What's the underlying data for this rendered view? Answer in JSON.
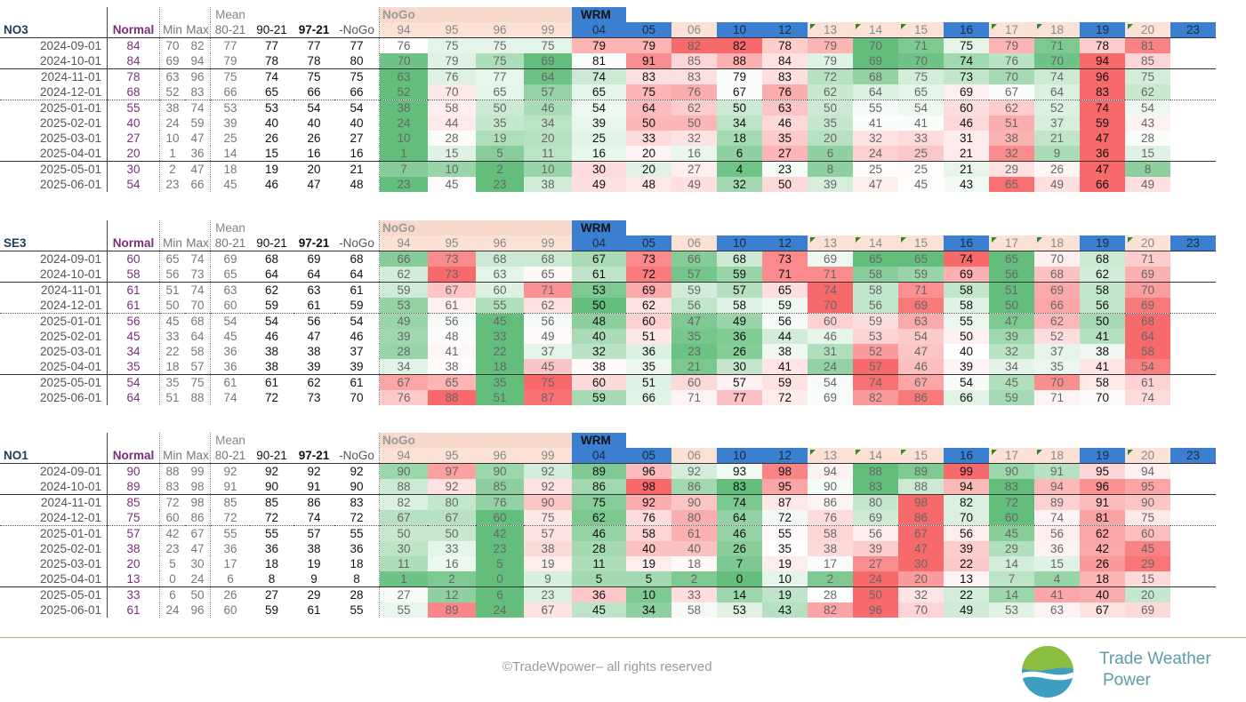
{
  "header_labels": {
    "normal": "Normal",
    "min": "Min",
    "max": "Max",
    "mean": "Mean",
    "m80": "80-21",
    "m90": "90-21",
    "m97": "97-21",
    "nogo_col": "-NoGo",
    "nogo_group": "NoGo",
    "wrm_group": "WRM"
  },
  "years": [
    "94",
    "95",
    "96",
    "99",
    "04",
    "05",
    "06",
    "10",
    "12",
    "13",
    "14",
    "15",
    "16",
    "17",
    "18",
    "19",
    "20",
    "23"
  ],
  "year_style": [
    "n",
    "n",
    "n",
    "n",
    "b",
    "b",
    "n",
    "b",
    "b",
    "f",
    "f",
    "f",
    "b",
    "f",
    "f",
    "b",
    "f",
    "b"
  ],
  "colors": {
    "accent_blue": "#3b7fd1",
    "nogo_bg": "#f7d9cc",
    "normal_purple": "#7a2e7a",
    "green_line": "#9ec25a"
  },
  "tables": [
    {
      "title": "NO3",
      "rows": [
        {
          "date": "2024-09-01",
          "normal": "84",
          "min": "70",
          "max": "82",
          "m80": "77",
          "m90": "77",
          "m97": "77",
          "mng": "77",
          "v": [
            "76",
            "75",
            "75",
            "75",
            "79",
            "79",
            "82",
            "82",
            "78",
            "79",
            "70",
            "71",
            "75",
            "79",
            "71",
            "78",
            "81",
            ""
          ]
        },
        {
          "date": "2024-10-01",
          "normal": "84",
          "min": "69",
          "max": "94",
          "m80": "79",
          "m90": "78",
          "m97": "78",
          "mng": "80",
          "v": [
            "70",
            "79",
            "75",
            "69",
            "81",
            "91",
            "85",
            "88",
            "84",
            "79",
            "69",
            "70",
            "74",
            "76",
            "70",
            "94",
            "85",
            ""
          ]
        },
        {
          "date": "2024-11-01",
          "normal": "78",
          "min": "63",
          "max": "96",
          "m80": "75",
          "m90": "74",
          "m97": "75",
          "mng": "75",
          "v": [
            "63",
            "76",
            "77",
            "64",
            "74",
            "83",
            "83",
            "79",
            "83",
            "72",
            "68",
            "75",
            "73",
            "70",
            "74",
            "96",
            "75",
            ""
          ]
        },
        {
          "date": "2024-12-01",
          "normal": "68",
          "min": "52",
          "max": "83",
          "m80": "66",
          "m90": "65",
          "m97": "66",
          "mng": "66",
          "v": [
            "52",
            "70",
            "65",
            "57",
            "65",
            "75",
            "76",
            "67",
            "76",
            "62",
            "64",
            "65",
            "69",
            "67",
            "64",
            "83",
            "62",
            ""
          ]
        },
        {
          "date": "2025-01-01",
          "normal": "55",
          "min": "38",
          "max": "74",
          "m80": "53",
          "m90": "53",
          "m97": "54",
          "mng": "54",
          "v": [
            "38",
            "58",
            "50",
            "46",
            "54",
            "64",
            "62",
            "50",
            "63",
            "50",
            "55",
            "54",
            "60",
            "62",
            "52",
            "74",
            "54",
            ""
          ]
        },
        {
          "date": "2025-02-01",
          "normal": "40",
          "min": "24",
          "max": "59",
          "m80": "39",
          "m90": "40",
          "m97": "40",
          "mng": "40",
          "v": [
            "24",
            "44",
            "35",
            "34",
            "39",
            "50",
            "50",
            "34",
            "46",
            "35",
            "41",
            "41",
            "46",
            "51",
            "37",
            "59",
            "43",
            ""
          ]
        },
        {
          "date": "2025-03-01",
          "normal": "27",
          "min": "10",
          "max": "47",
          "m80": "25",
          "m90": "26",
          "m97": "26",
          "mng": "27",
          "v": [
            "10",
            "28",
            "19",
            "20",
            "25",
            "33",
            "32",
            "18",
            "35",
            "20",
            "32",
            "33",
            "31",
            "38",
            "21",
            "47",
            "28",
            ""
          ]
        },
        {
          "date": "2025-04-01",
          "normal": "20",
          "min": "1",
          "max": "36",
          "m80": "14",
          "m90": "15",
          "m97": "16",
          "mng": "16",
          "v": [
            "1",
            "15",
            "5",
            "11",
            "16",
            "20",
            "16",
            "6",
            "27",
            "6",
            "24",
            "25",
            "21",
            "32",
            "9",
            "36",
            "15",
            ""
          ]
        },
        {
          "date": "2025-05-01",
          "normal": "30",
          "min": "2",
          "max": "47",
          "m80": "18",
          "m90": "19",
          "m97": "20",
          "mng": "21",
          "v": [
            "7",
            "10",
            "2",
            "10",
            "30",
            "20",
            "27",
            "4",
            "23",
            "8",
            "25",
            "25",
            "21",
            "29",
            "26",
            "47",
            "8",
            ""
          ]
        },
        {
          "date": "2025-06-01",
          "normal": "54",
          "min": "23",
          "max": "66",
          "m80": "45",
          "m90": "46",
          "m97": "47",
          "mng": "48",
          "v": [
            "23",
            "45",
            "23",
            "38",
            "49",
            "48",
            "49",
            "32",
            "50",
            "39",
            "47",
            "45",
            "43",
            "65",
            "49",
            "66",
            "49",
            ""
          ]
        }
      ]
    },
    {
      "title": "SE3",
      "rows": [
        {
          "date": "2024-09-01",
          "normal": "60",
          "min": "65",
          "max": "74",
          "m80": "69",
          "m90": "68",
          "m97": "69",
          "mng": "68",
          "v": [
            "66",
            "73",
            "68",
            "68",
            "67",
            "73",
            "66",
            "68",
            "73",
            "69",
            "65",
            "65",
            "74",
            "65",
            "70",
            "68",
            "71",
            ""
          ]
        },
        {
          "date": "2024-10-01",
          "normal": "58",
          "min": "56",
          "max": "73",
          "m80": "65",
          "m90": "64",
          "m97": "64",
          "mng": "64",
          "v": [
            "62",
            "73",
            "63",
            "65",
            "61",
            "72",
            "57",
            "59",
            "71",
            "71",
            "58",
            "59",
            "69",
            "56",
            "68",
            "62",
            "69",
            ""
          ]
        },
        {
          "date": "2024-11-01",
          "normal": "61",
          "min": "51",
          "max": "74",
          "m80": "63",
          "m90": "62",
          "m97": "63",
          "mng": "61",
          "v": [
            "59",
            "67",
            "60",
            "71",
            "53",
            "69",
            "59",
            "57",
            "65",
            "74",
            "58",
            "71",
            "58",
            "51",
            "69",
            "58",
            "70",
            ""
          ]
        },
        {
          "date": "2024-12-01",
          "normal": "61",
          "min": "50",
          "max": "70",
          "m80": "60",
          "m90": "59",
          "m97": "61",
          "mng": "59",
          "v": [
            "53",
            "61",
            "55",
            "62",
            "50",
            "62",
            "56",
            "58",
            "59",
            "70",
            "56",
            "69",
            "58",
            "50",
            "66",
            "56",
            "69",
            ""
          ]
        },
        {
          "date": "2025-01-01",
          "normal": "56",
          "min": "45",
          "max": "68",
          "m80": "54",
          "m90": "54",
          "m97": "56",
          "mng": "54",
          "v": [
            "49",
            "56",
            "45",
            "56",
            "48",
            "60",
            "47",
            "49",
            "56",
            "60",
            "59",
            "63",
            "55",
            "47",
            "62",
            "50",
            "68",
            ""
          ]
        },
        {
          "date": "2025-02-01",
          "normal": "45",
          "min": "33",
          "max": "64",
          "m80": "45",
          "m90": "46",
          "m97": "47",
          "mng": "46",
          "v": [
            "39",
            "48",
            "33",
            "49",
            "40",
            "51",
            "35",
            "36",
            "44",
            "46",
            "53",
            "54",
            "50",
            "39",
            "52",
            "41",
            "64",
            ""
          ]
        },
        {
          "date": "2025-03-01",
          "normal": "34",
          "min": "22",
          "max": "58",
          "m80": "36",
          "m90": "38",
          "m97": "38",
          "mng": "37",
          "v": [
            "28",
            "41",
            "22",
            "37",
            "32",
            "36",
            "23",
            "26",
            "38",
            "31",
            "52",
            "47",
            "40",
            "32",
            "37",
            "38",
            "58",
            ""
          ]
        },
        {
          "date": "2025-04-01",
          "normal": "35",
          "min": "18",
          "max": "57",
          "m80": "36",
          "m90": "38",
          "m97": "39",
          "mng": "39",
          "v": [
            "34",
            "38",
            "18",
            "45",
            "38",
            "35",
            "21",
            "30",
            "41",
            "24",
            "57",
            "46",
            "39",
            "34",
            "35",
            "41",
            "54",
            ""
          ]
        },
        {
          "date": "2025-05-01",
          "normal": "54",
          "min": "35",
          "max": "75",
          "m80": "61",
          "m90": "61",
          "m97": "62",
          "mng": "61",
          "v": [
            "67",
            "65",
            "35",
            "75",
            "60",
            "51",
            "60",
            "57",
            "59",
            "54",
            "74",
            "67",
            "54",
            "45",
            "70",
            "58",
            "61",
            ""
          ]
        },
        {
          "date": "2025-06-01",
          "normal": "64",
          "min": "51",
          "max": "88",
          "m80": "74",
          "m90": "72",
          "m97": "73",
          "mng": "70",
          "v": [
            "76",
            "88",
            "51",
            "87",
            "59",
            "66",
            "71",
            "77",
            "72",
            "69",
            "82",
            "86",
            "66",
            "59",
            "71",
            "70",
            "74",
            ""
          ]
        }
      ]
    },
    {
      "title": "NO1",
      "rows": [
        {
          "date": "2024-09-01",
          "normal": "90",
          "min": "88",
          "max": "99",
          "m80": "92",
          "m90": "92",
          "m97": "92",
          "mng": "92",
          "v": [
            "90",
            "97",
            "90",
            "92",
            "89",
            "96",
            "92",
            "93",
            "98",
            "94",
            "88",
            "89",
            "99",
            "90",
            "91",
            "95",
            "94",
            ""
          ]
        },
        {
          "date": "2024-10-01",
          "normal": "89",
          "min": "83",
          "max": "98",
          "m80": "91",
          "m90": "90",
          "m97": "91",
          "mng": "90",
          "v": [
            "88",
            "92",
            "85",
            "92",
            "86",
            "98",
            "86",
            "83",
            "95",
            "90",
            "83",
            "88",
            "94",
            "83",
            "94",
            "96",
            "95",
            ""
          ]
        },
        {
          "date": "2024-11-01",
          "normal": "85",
          "min": "72",
          "max": "98",
          "m80": "85",
          "m90": "85",
          "m97": "86",
          "mng": "83",
          "v": [
            "82",
            "80",
            "76",
            "90",
            "75",
            "92",
            "90",
            "74",
            "87",
            "86",
            "80",
            "98",
            "82",
            "72",
            "89",
            "91",
            "90",
            ""
          ]
        },
        {
          "date": "2024-12-01",
          "normal": "75",
          "min": "60",
          "max": "86",
          "m80": "72",
          "m90": "72",
          "m97": "74",
          "mng": "72",
          "v": [
            "67",
            "67",
            "60",
            "75",
            "62",
            "76",
            "80",
            "64",
            "72",
            "76",
            "69",
            "86",
            "70",
            "60",
            "74",
            "81",
            "75",
            ""
          ]
        },
        {
          "date": "2025-01-01",
          "normal": "57",
          "min": "42",
          "max": "67",
          "m80": "55",
          "m90": "55",
          "m97": "57",
          "mng": "55",
          "v": [
            "50",
            "50",
            "42",
            "57",
            "46",
            "58",
            "61",
            "46",
            "55",
            "58",
            "56",
            "67",
            "56",
            "45",
            "56",
            "62",
            "60",
            ""
          ]
        },
        {
          "date": "2025-02-01",
          "normal": "38",
          "min": "23",
          "max": "47",
          "m80": "36",
          "m90": "36",
          "m97": "38",
          "mng": "36",
          "v": [
            "30",
            "33",
            "23",
            "38",
            "28",
            "40",
            "40",
            "26",
            "35",
            "38",
            "39",
            "47",
            "39",
            "29",
            "36",
            "42",
            "45",
            ""
          ]
        },
        {
          "date": "2025-03-01",
          "normal": "20",
          "min": "5",
          "max": "30",
          "m80": "17",
          "m90": "18",
          "m97": "19",
          "mng": "18",
          "v": [
            "11",
            "16",
            "5",
            "19",
            "11",
            "19",
            "18",
            "7",
            "19",
            "17",
            "27",
            "30",
            "22",
            "14",
            "15",
            "26",
            "29",
            ""
          ]
        },
        {
          "date": "2025-04-01",
          "normal": "13",
          "min": "0",
          "max": "24",
          "m80": "6",
          "m90": "8",
          "m97": "9",
          "mng": "8",
          "v": [
            "1",
            "2",
            "0",
            "9",
            "5",
            "5",
            "2",
            "0",
            "10",
            "2",
            "24",
            "20",
            "13",
            "7",
            "4",
            "18",
            "15",
            ""
          ]
        },
        {
          "date": "2025-05-01",
          "normal": "33",
          "min": "6",
          "max": "50",
          "m80": "26",
          "m90": "27",
          "m97": "29",
          "mng": "28",
          "v": [
            "27",
            "12",
            "6",
            "23",
            "36",
            "10",
            "33",
            "14",
            "19",
            "28",
            "50",
            "32",
            "22",
            "14",
            "41",
            "40",
            "20",
            ""
          ]
        },
        {
          "date": "2025-06-01",
          "normal": "61",
          "min": "24",
          "max": "96",
          "m80": "60",
          "m90": "59",
          "m97": "61",
          "mng": "55",
          "v": [
            "55",
            "89",
            "24",
            "67",
            "45",
            "34",
            "58",
            "53",
            "43",
            "82",
            "96",
            "70",
            "49",
            "53",
            "63",
            "67",
            "69",
            ""
          ]
        }
      ]
    }
  ],
  "footer": {
    "copyright": "©TradeWpower– all rights reserved",
    "brand_line1": "Trade Weather",
    "brand_line2": "Power"
  }
}
